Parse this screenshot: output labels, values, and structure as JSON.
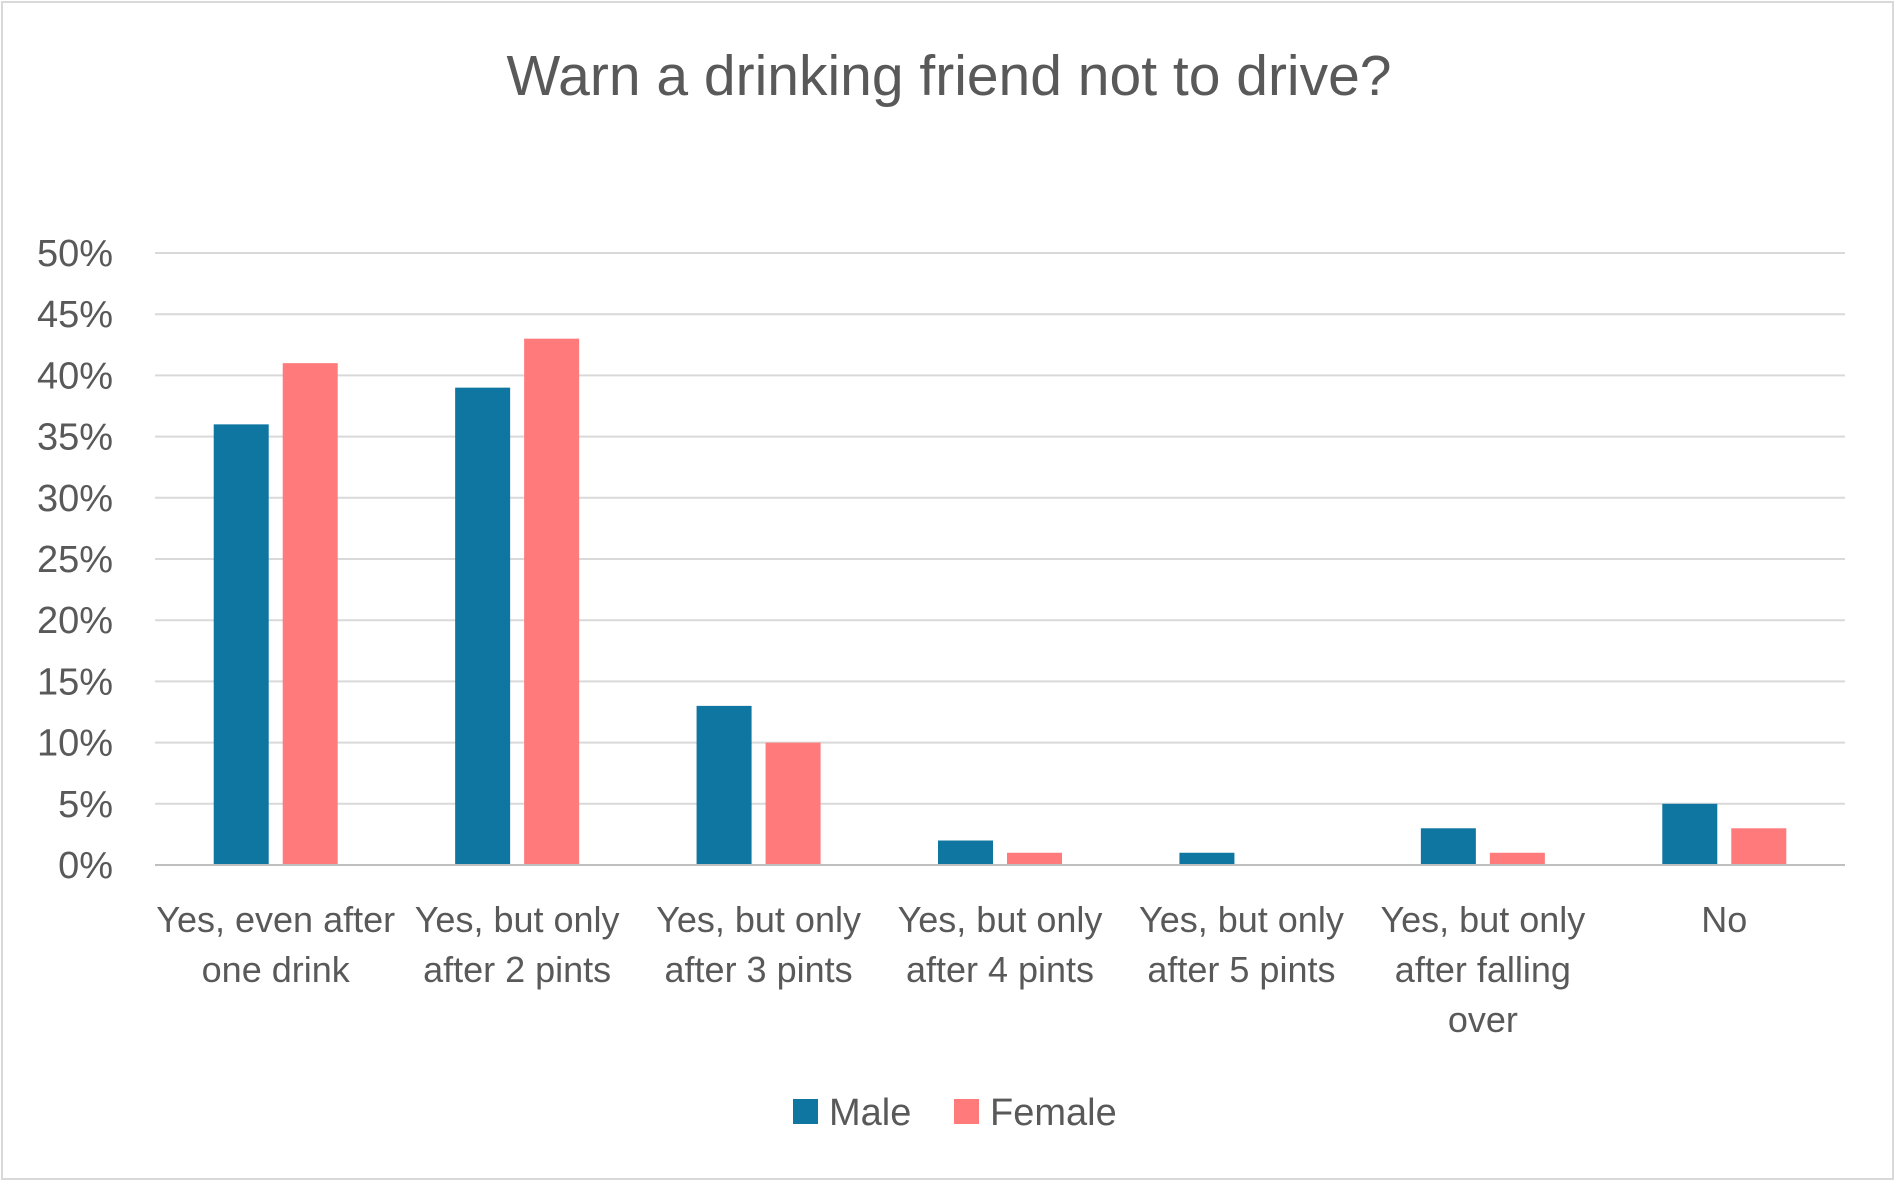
{
  "chart_data": {
    "type": "bar",
    "title": "Warn a drinking friend not to drive?",
    "xlabel": "",
    "ylabel": "",
    "ylim": [
      0,
      50
    ],
    "yticks": [
      "0%",
      "5%",
      "10%",
      "15%",
      "20%",
      "25%",
      "30%",
      "35%",
      "40%",
      "45%",
      "50%"
    ],
    "grid": true,
    "legend_position": "bottom",
    "categories": [
      [
        "Yes, even after",
        "one drink"
      ],
      [
        "Yes, but only",
        "after 2 pints"
      ],
      [
        "Yes, but only",
        "after 3 pints"
      ],
      [
        "Yes, but only",
        "after 4 pints"
      ],
      [
        "Yes, but only",
        "after 5 pints"
      ],
      [
        "Yes, but only",
        "after falling",
        "over"
      ],
      [
        "No"
      ]
    ],
    "series": [
      {
        "name": "Male",
        "color": "#0e76a0",
        "values": [
          36,
          39,
          13,
          2,
          1,
          3,
          5
        ]
      },
      {
        "name": "Female",
        "color": "#ff7a7a",
        "values": [
          41,
          43,
          10,
          1,
          0,
          1,
          3
        ]
      }
    ]
  }
}
